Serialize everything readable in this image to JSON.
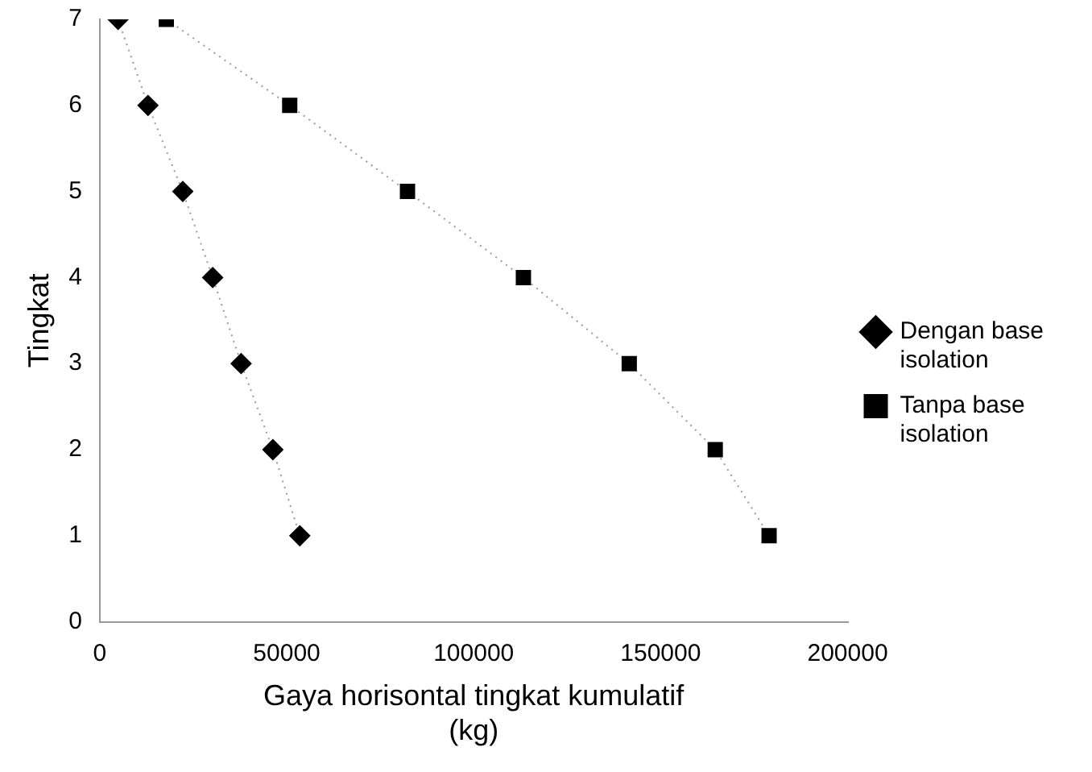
{
  "chart_data": {
    "type": "line",
    "xlabel": "Gaya horisontal tingkat kumulatif (kg)",
    "ylabel": "Tingkat",
    "xlim": [
      0,
      200000
    ],
    "xticks": [
      0,
      50000,
      100000,
      150000,
      200000
    ],
    "ylim": [
      0,
      7
    ],
    "yticks": [
      0,
      1,
      2,
      3,
      4,
      5,
      6,
      7
    ],
    "grid": false,
    "legend": "right",
    "line_style": "dotted",
    "series": [
      {
        "name": "Dengan base isolation",
        "color": "#000000",
        "marker": "diamond",
        "x": [
          4900,
          12900,
          22200,
          30200,
          37800,
          46300,
          53500
        ],
        "values": [
          7,
          6,
          5,
          4,
          3,
          2,
          1
        ]
      },
      {
        "name": "Tanpa base isolation",
        "color": "#000000",
        "marker": "square",
        "x": [
          17800,
          50800,
          82300,
          113300,
          141600,
          164600,
          179000
        ],
        "values": [
          7,
          6,
          5,
          4,
          3,
          2,
          1
        ]
      }
    ]
  }
}
